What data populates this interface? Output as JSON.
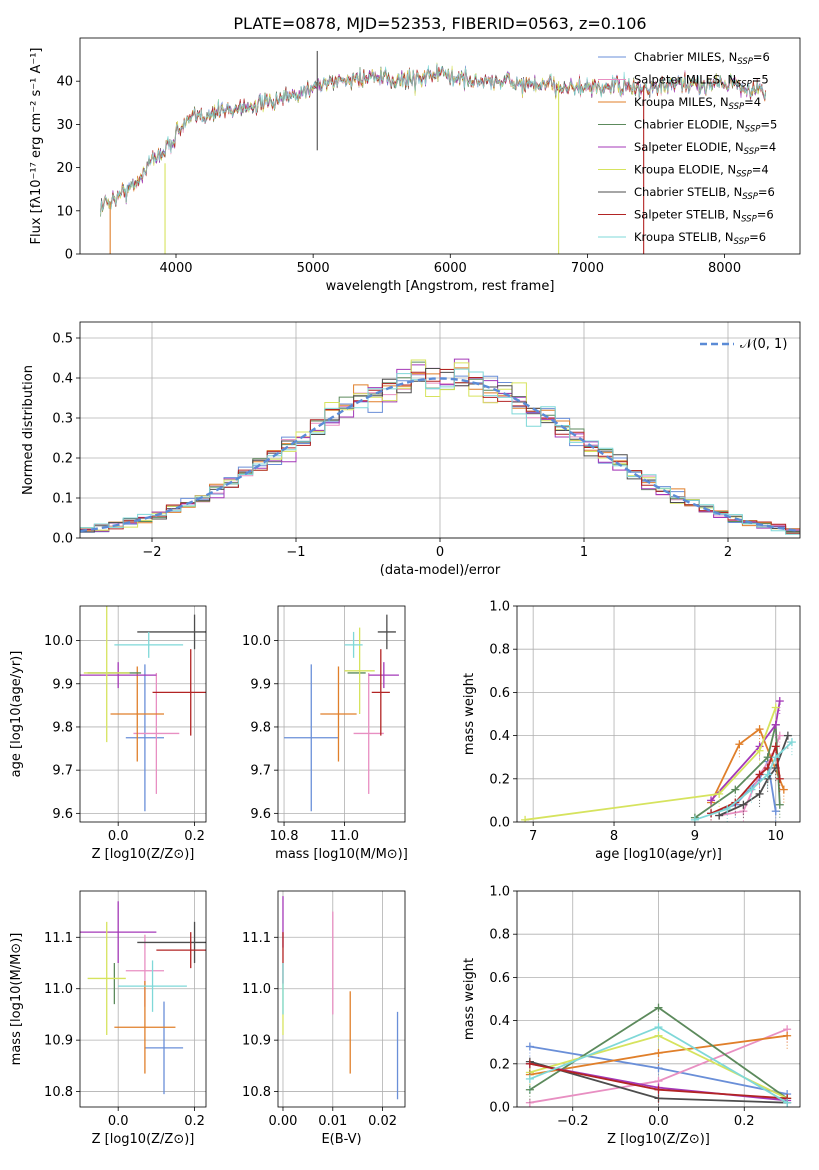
{
  "figure": {
    "title": "PLATE=0878, MJD=52353, FIBERID=0563, z=0.106"
  },
  "colors": {
    "Chabrier MILES": "#6a8fd8",
    "Salpeter MILES": "#e88fc2",
    "Kroupa MILES": "#e07f2a",
    "Chabrier ELODIE": "#5c8a5c",
    "Salpeter ELODIE": "#a438b8",
    "Kroupa ELODIE": "#d6e35e",
    "Chabrier STELIB": "#4d4d4d",
    "Salpeter STELIB": "#b22424",
    "Kroupa STELIB": "#7fd8d8",
    "normal": "#5b8bd6",
    "grid": "#b0b0b0"
  },
  "chart_data": [
    {
      "id": "spectrum",
      "type": "line",
      "xlabel": "wavelength [Angstrom, rest frame]",
      "ylabel": "Flux [fλ10⁻¹⁷ erg cm⁻² s⁻¹ A⁻¹]",
      "xlim": [
        3300,
        8550
      ],
      "ylim": [
        0,
        50
      ],
      "xticks": [
        4000,
        5000,
        6000,
        7000,
        8000
      ],
      "yticks": [
        0,
        10,
        20,
        30,
        40
      ],
      "grid": false,
      "legend_position": "right",
      "continuum": {
        "x": [
          3450,
          3550,
          3700,
          3800,
          3950,
          4000,
          4100,
          4300,
          4500,
          4700,
          4900,
          5000,
          5200,
          5400,
          5600,
          5800,
          5900,
          6000,
          6200,
          6400,
          6600,
          6800,
          7000,
          7200,
          7400,
          7600,
          7800,
          8000,
          8200,
          8300
        ],
        "y": [
          11,
          13,
          16,
          21,
          25,
          28,
          31,
          33,
          34,
          35,
          37,
          39,
          40,
          41,
          40,
          41,
          42,
          41,
          40,
          40,
          39,
          39,
          38,
          39,
          38,
          39,
          39,
          40,
          38,
          38
        ]
      },
      "features": [
        {
          "series": "Chabrier STELIB",
          "x": 5030,
          "ymin": 24,
          "ymax": 47
        },
        {
          "series": "Kroupa MILES",
          "x": 3520,
          "ymin": 0,
          "ymax": 12
        },
        {
          "series": "Kroupa ELODIE",
          "x": 3920,
          "ymin": 0,
          "ymax": 21
        },
        {
          "series": "Kroupa ELODIE",
          "x": 6790,
          "ymin": 0,
          "ymax": 40
        },
        {
          "series": "Salpeter STELIB",
          "x": 7410,
          "ymin": 0,
          "ymax": 39
        }
      ],
      "series": [
        {
          "name": "Chabrier MILES, N_SSP=6",
          "key": "Chabrier MILES"
        },
        {
          "name": "Salpeter MILES, N_SSP=5",
          "key": "Salpeter MILES"
        },
        {
          "name": "Kroupa MILES, N_SSP=4",
          "key": "Kroupa MILES"
        },
        {
          "name": "Chabrier ELODIE, N_SSP=5",
          "key": "Chabrier ELODIE"
        },
        {
          "name": "Salpeter ELODIE, N_SSP=4",
          "key": "Salpeter ELODIE"
        },
        {
          "name": "Kroupa ELODIE, N_SSP=4",
          "key": "Kroupa ELODIE"
        },
        {
          "name": "Chabrier STELIB, N_SSP=6",
          "key": "Chabrier STELIB"
        },
        {
          "name": "Salpeter STELIB, N_SSP=6",
          "key": "Salpeter STELIB"
        },
        {
          "name": "Kroupa STELIB, N_SSP=6",
          "key": "Kroupa STELIB"
        }
      ]
    },
    {
      "id": "residuals",
      "type": "histogram",
      "xlabel": "(data-model)/error",
      "ylabel": "Normed distribution",
      "xlim": [
        -2.5,
        2.5
      ],
      "ylim": [
        0,
        0.54
      ],
      "xticks": [
        -2,
        -1,
        0,
        1,
        2
      ],
      "yticks": [
        0.0,
        0.1,
        0.2,
        0.3,
        0.4,
        0.5
      ],
      "grid": true,
      "bin_width": 0.1,
      "legend": {
        "label": "𝒩(0, 1)",
        "position": "top-right"
      }
    },
    {
      "id": "age-vs-Z",
      "type": "errorbar",
      "xlabel": "Z [log10(Z/Z⊙)]",
      "ylabel": "age [log10(age/yr)]",
      "xlim": [
        -0.1,
        0.23
      ],
      "ylim": [
        9.58,
        10.08
      ],
      "xticks": [
        0.0,
        0.2
      ],
      "yticks": [
        9.6,
        9.7,
        9.8,
        9.9,
        10.0
      ],
      "grid": true,
      "points": [
        {
          "key": "Chabrier MILES",
          "x": 0.07,
          "y": 9.775,
          "xerr": 0.05,
          "yerr": 0.17
        },
        {
          "key": "Salpeter MILES",
          "x": 0.1,
          "y": 9.785,
          "xerr": 0.06,
          "yerr": 0.14
        },
        {
          "key": "Kroupa MILES",
          "x": 0.05,
          "y": 9.83,
          "xerr": 0.07,
          "yerr": 0.11
        },
        {
          "key": "Chabrier ELODIE",
          "x": -0.01,
          "y": 9.925,
          "xerr": 0.07,
          "yerr": 0.0
        },
        {
          "key": "Salpeter ELODIE",
          "x": 0.0,
          "y": 9.92,
          "xerr": 0.1,
          "yerr": 0.03
        },
        {
          "key": "Kroupa ELODIE",
          "x": -0.03,
          "y": 9.925,
          "xerr": 0.06,
          "yerr": 0.16
        },
        {
          "key": "Chabrier STELIB",
          "x": 0.2,
          "y": 10.02,
          "xerr": 0.15,
          "yerr": 0.04
        },
        {
          "key": "Salpeter STELIB",
          "x": 0.19,
          "y": 9.88,
          "xerr": 0.1,
          "yerr": 0.1
        },
        {
          "key": "Kroupa STELIB",
          "x": 0.08,
          "y": 9.99,
          "xerr": 0.09,
          "yerr": 0.03
        }
      ]
    },
    {
      "id": "age-vs-mass",
      "type": "errorbar",
      "xlabel": "mass [log10(M/M⊙)]",
      "ylabel": "",
      "xlim": [
        10.78,
        11.2
      ],
      "ylim": [
        9.58,
        10.08
      ],
      "xticks": [
        10.8,
        11.0
      ],
      "yticks": [
        9.6,
        9.7,
        9.8,
        9.9,
        10.0
      ],
      "grid": true,
      "points": [
        {
          "key": "Chabrier MILES",
          "x": 10.89,
          "y": 9.775,
          "xerr": 0.09,
          "yerr": 0.17
        },
        {
          "key": "Salpeter MILES",
          "x": 11.08,
          "y": 9.785,
          "xerr": 0.05,
          "yerr": 0.14
        },
        {
          "key": "Kroupa MILES",
          "x": 10.98,
          "y": 9.83,
          "xerr": 0.06,
          "yerr": 0.11
        },
        {
          "key": "Chabrier ELODIE",
          "x": 11.04,
          "y": 9.925,
          "xerr": 0.03,
          "yerr": 0.0
        },
        {
          "key": "Salpeter ELODIE",
          "x": 11.13,
          "y": 9.92,
          "xerr": 0.05,
          "yerr": 0.03
        },
        {
          "key": "Kroupa ELODIE",
          "x": 11.05,
          "y": 9.93,
          "xerr": 0.05,
          "yerr": 0.1
        },
        {
          "key": "Chabrier STELIB",
          "x": 11.14,
          "y": 10.02,
          "xerr": 0.03,
          "yerr": 0.04
        },
        {
          "key": "Salpeter STELIB",
          "x": 11.12,
          "y": 9.88,
          "xerr": 0.03,
          "yerr": 0.1
        },
        {
          "key": "Kroupa STELIB",
          "x": 11.03,
          "y": 9.99,
          "xerr": 0.03,
          "yerr": 0.03
        }
      ]
    },
    {
      "id": "weight-vs-age",
      "type": "line",
      "xlabel": "age [log10(age/yr)]",
      "ylabel": "mass weight",
      "xlim": [
        6.8,
        10.3
      ],
      "ylim": [
        0,
        1.0
      ],
      "xticks": [
        7,
        8,
        9,
        10
      ],
      "yticks": [
        0.0,
        0.2,
        0.4,
        0.6,
        0.8,
        1.0
      ],
      "grid": true,
      "series": [
        {
          "key": "Chabrier MILES",
          "x": [
            9.2,
            9.5,
            9.8,
            9.9,
            10.0
          ],
          "y": [
            0.04,
            0.08,
            0.2,
            0.28,
            0.05
          ]
        },
        {
          "key": "Salpeter MILES",
          "x": [
            9.3,
            9.6,
            9.8,
            9.95,
            10.05
          ],
          "y": [
            0.03,
            0.05,
            0.22,
            0.3,
            0.4
          ]
        },
        {
          "key": "Kroupa MILES",
          "x": [
            9.2,
            9.55,
            9.8,
            10.1
          ],
          "y": [
            0.09,
            0.36,
            0.43,
            0.15
          ]
        },
        {
          "key": "Chabrier ELODIE",
          "x": [
            9.0,
            9.5,
            9.9,
            10.0,
            10.05
          ],
          "y": [
            0.02,
            0.15,
            0.3,
            0.45,
            0.08
          ]
        },
        {
          "key": "Salpeter ELODIE",
          "x": [
            9.2,
            9.8,
            10.0,
            10.05
          ],
          "y": [
            0.1,
            0.35,
            0.45,
            0.56
          ]
        },
        {
          "key": "Kroupa ELODIE",
          "x": [
            6.9,
            9.3,
            9.8,
            10.0
          ],
          "y": [
            0.01,
            0.13,
            0.33,
            0.53
          ]
        },
        {
          "key": "Chabrier STELIB",
          "x": [
            9.3,
            9.6,
            9.8,
            9.9,
            10.0,
            10.15
          ],
          "y": [
            0.03,
            0.08,
            0.13,
            0.2,
            0.25,
            0.4
          ]
        },
        {
          "key": "Salpeter STELIB",
          "x": [
            9.2,
            9.5,
            9.8,
            9.9,
            10.0,
            10.05
          ],
          "y": [
            0.04,
            0.09,
            0.22,
            0.25,
            0.35,
            0.2
          ]
        },
        {
          "key": "Kroupa STELIB",
          "x": [
            9.0,
            9.4,
            9.7,
            9.9,
            10.0,
            10.2
          ],
          "y": [
            0.01,
            0.06,
            0.15,
            0.22,
            0.3,
            0.37
          ]
        }
      ]
    },
    {
      "id": "mass-vs-Z",
      "type": "errorbar",
      "xlabel": "Z [log10(Z/Z⊙)]",
      "ylabel": "mass [log10(M/M⊙)]",
      "xlim": [
        -0.1,
        0.23
      ],
      "ylim": [
        10.77,
        11.19
      ],
      "xticks": [
        0.0,
        0.2
      ],
      "yticks": [
        10.8,
        10.9,
        11.0,
        11.1
      ],
      "grid": true,
      "points": [
        {
          "key": "Chabrier MILES",
          "x": 0.12,
          "y": 10.885,
          "xerr": 0.05,
          "yerr": 0.09
        },
        {
          "key": "Salpeter MILES",
          "x": 0.07,
          "y": 11.035,
          "xerr": 0.05,
          "yerr": 0.07
        },
        {
          "key": "Kroupa MILES",
          "x": 0.07,
          "y": 10.925,
          "xerr": 0.08,
          "yerr": 0.09
        },
        {
          "key": "Chabrier ELODIE",
          "x": -0.01,
          "y": 11.01,
          "xerr": 0.0,
          "yerr": 0.04
        },
        {
          "key": "Salpeter ELODIE",
          "x": 0.0,
          "y": 11.11,
          "xerr": 0.1,
          "yerr": 0.06
        },
        {
          "key": "Kroupa ELODIE",
          "x": -0.03,
          "y": 11.02,
          "xerr": 0.05,
          "yerr": 0.11
        },
        {
          "key": "Chabrier STELIB",
          "x": 0.2,
          "y": 11.09,
          "xerr": 0.15,
          "yerr": 0.04
        },
        {
          "key": "Salpeter STELIB",
          "x": 0.19,
          "y": 11.075,
          "xerr": 0.09,
          "yerr": 0.035
        },
        {
          "key": "Kroupa STELIB",
          "x": 0.09,
          "y": 11.005,
          "xerr": 0.09,
          "yerr": 0.05
        }
      ]
    },
    {
      "id": "mass-vs-ebv",
      "type": "errorbar",
      "xlabel": "E(B-V)",
      "ylabel": "",
      "xlim": [
        -0.001,
        0.0245
      ],
      "ylim": [
        10.77,
        11.19
      ],
      "xticks": [
        0.0,
        0.01,
        0.02
      ],
      "yticks": [
        10.8,
        10.9,
        11.0,
        11.1
      ],
      "grid": true,
      "points": [
        {
          "key": "Chabrier MILES",
          "x": 0.023,
          "y": 10.87,
          "xerr": 0,
          "yerr": 0.085
        },
        {
          "key": "Salpeter MILES",
          "x": 0.01,
          "y": 11.05,
          "xerr": 0,
          "yerr": 0.1
        },
        {
          "key": "Kroupa MILES",
          "x": 0.0135,
          "y": 10.915,
          "xerr": 0,
          "yerr": 0.08
        },
        {
          "key": "Salpeter ELODIE",
          "x": 0.0,
          "y": 11.13,
          "xerr": 0,
          "yerr": 0.05
        },
        {
          "key": "Kroupa ELODIE",
          "x": 0.0,
          "y": 10.96,
          "xerr": 0,
          "yerr": 0.05
        },
        {
          "key": "Salpeter STELIB",
          "x": 0.0,
          "y": 11.06,
          "xerr": 0,
          "yerr": 0.05
        },
        {
          "key": "Kroupa STELIB",
          "x": 0.0,
          "y": 11.0,
          "xerr": 0,
          "yerr": 0.05
        }
      ]
    },
    {
      "id": "weight-vs-Z",
      "type": "line",
      "xlabel": "Z [log10(Z/Z⊙)]",
      "ylabel": "mass weight",
      "xlim": [
        -0.33,
        0.33
      ],
      "ylim": [
        0,
        1.0
      ],
      "xticks": [
        -0.2,
        0.0,
        0.2
      ],
      "yticks": [
        0.0,
        0.2,
        0.4,
        0.6,
        0.8,
        1.0
      ],
      "grid": true,
      "series": [
        {
          "key": "Chabrier MILES",
          "x": [
            -0.3,
            0.0,
            0.3
          ],
          "y": [
            0.28,
            0.18,
            0.06
          ]
        },
        {
          "key": "Salpeter MILES",
          "x": [
            -0.3,
            0.0,
            0.3
          ],
          "y": [
            0.02,
            0.12,
            0.36
          ]
        },
        {
          "key": "Kroupa MILES",
          "x": [
            -0.3,
            0.0,
            0.3
          ],
          "y": [
            0.15,
            0.25,
            0.33
          ]
        },
        {
          "key": "Chabrier ELODIE",
          "x": [
            -0.3,
            0.0,
            0.3
          ],
          "y": [
            0.08,
            0.46,
            0.04
          ]
        },
        {
          "key": "Salpeter ELODIE",
          "x": [
            -0.3,
            0.0,
            0.3
          ],
          "y": [
            0.2,
            0.09,
            0.03
          ]
        },
        {
          "key": "Kroupa ELODIE",
          "x": [
            -0.3,
            0.0,
            0.3
          ],
          "y": [
            0.16,
            0.33,
            0.04
          ]
        },
        {
          "key": "Chabrier STELIB",
          "x": [
            -0.3,
            0.0,
            0.3
          ],
          "y": [
            0.21,
            0.04,
            0.02
          ]
        },
        {
          "key": "Salpeter STELIB",
          "x": [
            -0.3,
            0.0,
            0.3
          ],
          "y": [
            0.2,
            0.08,
            0.04
          ]
        },
        {
          "key": "Kroupa STELIB",
          "x": [
            -0.3,
            0.0,
            0.3
          ],
          "y": [
            0.13,
            0.37,
            0.02
          ]
        }
      ]
    }
  ]
}
